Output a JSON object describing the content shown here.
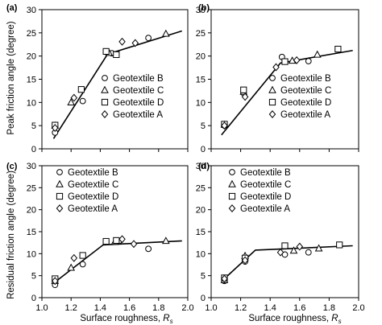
{
  "shared": {
    "xlabel": "Surface roughness, ",
    "xlabel_symbol": "R",
    "xlabel_sub": "s",
    "ylabel_top": "Peak friction angle (degree)",
    "ylabel_bottom": "Residual friction angle (degree)",
    "xticks": [
      "1.0",
      "1.2",
      "1.4",
      "1.6",
      "1.8",
      "2.0"
    ],
    "yticks": [
      "0",
      "5",
      "10",
      "15",
      "20",
      "25",
      "30"
    ]
  },
  "legend_labels": [
    "Geotextile B",
    "Geotextile C",
    "Geotextile D",
    "Geotextile A"
  ],
  "chart_data": [
    {
      "panel": "(a)",
      "type": "scatter",
      "xlim": [
        1.0,
        2.0
      ],
      "ylim": [
        0,
        30
      ],
      "grid": false,
      "legend_position": "middle-right",
      "series": [
        {
          "name": "Geotextile B",
          "marker": "circle",
          "x": [
            1.09,
            1.28,
            1.48,
            1.73
          ],
          "y": [
            3.5,
            10.3,
            20.6,
            23.9
          ]
        },
        {
          "name": "Geotextile C",
          "marker": "triangle",
          "x": [
            1.09,
            1.2,
            1.46,
            1.85
          ],
          "y": [
            5.0,
            10.0,
            20.7,
            24.8
          ]
        },
        {
          "name": "Geotextile D",
          "marker": "square",
          "x": [
            1.09,
            1.27,
            1.44,
            1.51
          ],
          "y": [
            5.1,
            12.8,
            21.0,
            20.3
          ]
        },
        {
          "name": "Geotextile A",
          "marker": "diamond",
          "x": [
            1.09,
            1.22,
            1.55,
            1.64
          ],
          "y": [
            4.5,
            11.0,
            23.1,
            22.8
          ]
        }
      ],
      "fit_line": {
        "x": [
          1.08,
          1.45,
          1.96
        ],
        "y": [
          2.2,
          20.4,
          25.4
        ]
      }
    },
    {
      "panel": "(b)",
      "type": "scatter",
      "xlim": [
        1.0,
        2.0
      ],
      "ylim": [
        0,
        30
      ],
      "grid": false,
      "legend_position": "middle-right",
      "series": [
        {
          "name": "Geotextile B",
          "marker": "circle",
          "x": [
            1.09,
            1.22,
            1.48,
            1.66
          ],
          "y": [
            5.0,
            12.0,
            19.8,
            18.9
          ]
        },
        {
          "name": "Geotextile C",
          "marker": "triangle",
          "x": [
            1.09,
            1.22,
            1.55,
            1.72
          ],
          "y": [
            5.2,
            12.3,
            19.0,
            20.3
          ]
        },
        {
          "name": "Geotextile D",
          "marker": "square",
          "x": [
            1.09,
            1.22,
            1.5,
            1.86
          ],
          "y": [
            5.3,
            12.7,
            18.8,
            21.5
          ]
        },
        {
          "name": "Geotextile A",
          "marker": "diamond",
          "x": [
            1.09,
            1.23,
            1.44,
            1.58
          ],
          "y": [
            5.0,
            11.2,
            17.6,
            19.1
          ]
        }
      ],
      "fit_line": {
        "x": [
          1.07,
          1.47,
          1.96
        ],
        "y": [
          3.0,
          18.5,
          21.2
        ]
      }
    },
    {
      "panel": "(c)",
      "type": "scatter",
      "xlim": [
        1.0,
        2.0
      ],
      "ylim": [
        0,
        30
      ],
      "grid": false,
      "legend_position": "top-left",
      "series": [
        {
          "name": "Geotextile B",
          "marker": "circle",
          "x": [
            1.09,
            1.28,
            1.53,
            1.73
          ],
          "y": [
            2.9,
            7.6,
            12.9,
            11.1
          ]
        },
        {
          "name": "Geotextile C",
          "marker": "triangle",
          "x": [
            1.09,
            1.2,
            1.5,
            1.85
          ],
          "y": [
            3.8,
            6.8,
            12.7,
            12.9
          ]
        },
        {
          "name": "Geotextile D",
          "marker": "square",
          "x": [
            1.09,
            1.28,
            1.44,
            1.51
          ],
          "y": [
            4.3,
            9.6,
            12.8,
            13.0
          ]
        },
        {
          "name": "Geotextile A",
          "marker": "diamond",
          "x": [
            1.09,
            1.22,
            1.55,
            1.63
          ],
          "y": [
            3.8,
            9.0,
            13.3,
            12.2
          ]
        }
      ],
      "fit_line": {
        "x": [
          1.08,
          1.42,
          1.96
        ],
        "y": [
          3.3,
          12.0,
          12.9
        ]
      }
    },
    {
      "panel": "(d)",
      "type": "scatter",
      "xlim": [
        1.0,
        2.0
      ],
      "ylim": [
        0,
        30
      ],
      "grid": false,
      "legend_position": "top-left",
      "series": [
        {
          "name": "Geotextile B",
          "marker": "circle",
          "x": [
            1.09,
            1.23,
            1.5,
            1.66
          ],
          "y": [
            3.8,
            8.2,
            9.8,
            10.3
          ]
        },
        {
          "name": "Geotextile C",
          "marker": "triangle",
          "x": [
            1.09,
            1.23,
            1.56,
            1.73
          ],
          "y": [
            4.0,
            9.5,
            10.7,
            11.2
          ]
        },
        {
          "name": "Geotextile D",
          "marker": "square",
          "x": [
            1.09,
            1.23,
            1.5,
            1.87
          ],
          "y": [
            4.5,
            9.0,
            11.8,
            12.0
          ]
        },
        {
          "name": "Geotextile A",
          "marker": "diamond",
          "x": [
            1.09,
            1.23,
            1.47,
            1.6
          ],
          "y": [
            4.3,
            8.5,
            10.3,
            11.6
          ]
        }
      ],
      "fit_line": {
        "x": [
          1.08,
          1.3,
          1.96
        ],
        "y": [
          4.0,
          10.8,
          11.8
        ]
      }
    }
  ]
}
